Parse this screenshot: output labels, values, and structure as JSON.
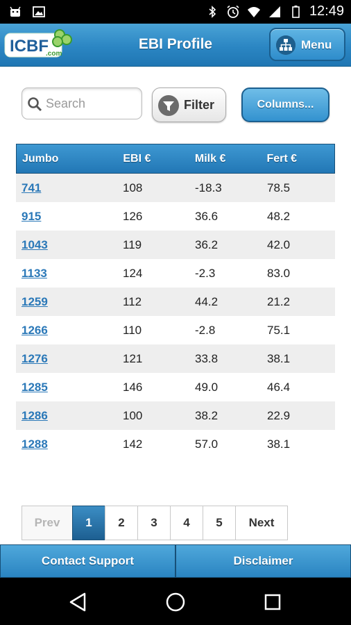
{
  "status_bar": {
    "time": "12:49",
    "left_icons": [
      "android-icon",
      "image-icon"
    ],
    "right_icons": [
      "bluetooth-icon",
      "alarm-icon",
      "wifi-icon",
      "signal-icon",
      "battery-icon"
    ]
  },
  "header": {
    "logo_text": "ICBF",
    "logo_subtext": ".com",
    "title": "EBI Profile",
    "menu_label": "Menu"
  },
  "toolbar": {
    "search_placeholder": "Search",
    "search_value": "",
    "filter_label": "Filter",
    "columns_label": "Columns..."
  },
  "table": {
    "columns": [
      "Jumbo",
      "EBI €",
      "Milk €",
      "Fert €"
    ],
    "rows": [
      {
        "jumbo": "741",
        "ebi": "108",
        "milk": "-18.3",
        "fert": "78.5"
      },
      {
        "jumbo": "915",
        "ebi": "126",
        "milk": "36.6",
        "fert": "48.2"
      },
      {
        "jumbo": "1043",
        "ebi": "119",
        "milk": "36.2",
        "fert": "42.0"
      },
      {
        "jumbo": "1133",
        "ebi": "124",
        "milk": "-2.3",
        "fert": "83.0"
      },
      {
        "jumbo": "1259",
        "ebi": "112",
        "milk": "44.2",
        "fert": "21.2"
      },
      {
        "jumbo": "1266",
        "ebi": "110",
        "milk": "-2.8",
        "fert": "75.1"
      },
      {
        "jumbo": "1276",
        "ebi": "121",
        "milk": "33.8",
        "fert": "38.1"
      },
      {
        "jumbo": "1285",
        "ebi": "146",
        "milk": "49.0",
        "fert": "46.4"
      },
      {
        "jumbo": "1286",
        "ebi": "100",
        "milk": "38.2",
        "fert": "22.9"
      },
      {
        "jumbo": "1288",
        "ebi": "142",
        "milk": "57.0",
        "fert": "38.1"
      }
    ]
  },
  "pagination": {
    "prev_label": "Prev",
    "pages": [
      "1",
      "2",
      "3",
      "4",
      "5"
    ],
    "active_page": "1",
    "next_label": "Next"
  },
  "footer": {
    "contact_label": "Contact Support",
    "disclaimer_label": "Disclaimer"
  },
  "colors": {
    "accent": "#2b86c3",
    "link": "#2a78b8",
    "active_page": "#1d5f91"
  }
}
